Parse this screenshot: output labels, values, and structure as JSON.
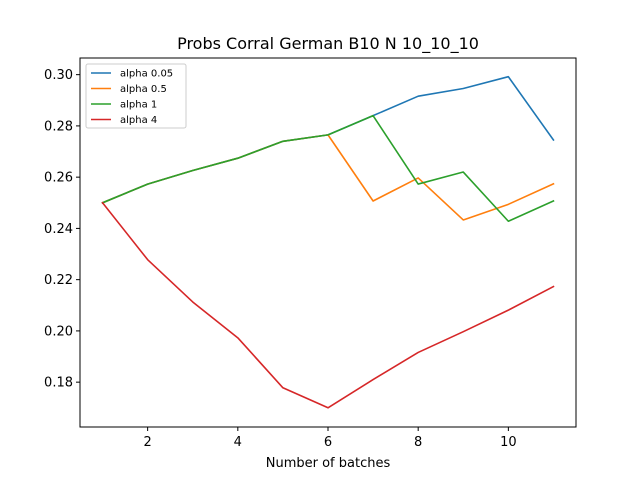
{
  "chart_data": {
    "type": "line",
    "title": "Probs Corral German B10 N 10_10_10",
    "xlabel": "Number of batches",
    "ylabel": "",
    "x": [
      1,
      2,
      3,
      4,
      5,
      6,
      7,
      8,
      9,
      10,
      11
    ],
    "xlim": [
      0.5,
      11.5
    ],
    "ylim": [
      0.1625,
      0.3065
    ],
    "xticks": [
      2,
      4,
      6,
      8,
      10
    ],
    "yticks": [
      0.18,
      0.2,
      0.22,
      0.24,
      0.26,
      0.28,
      0.3
    ],
    "xtick_labels": [
      "2",
      "4",
      "6",
      "8",
      "10"
    ],
    "ytick_labels": [
      "0.18",
      "0.20",
      "0.22",
      "0.24",
      "0.26",
      "0.28",
      "0.30"
    ],
    "grid": false,
    "legend_position": "upper-left",
    "series": [
      {
        "name": "alpha 0.05",
        "color": "#1f77b4",
        "values": [
          0.25,
          0.2573,
          0.2626,
          0.2674,
          0.274,
          0.2765,
          0.284,
          0.2916,
          0.2946,
          0.2992,
          0.2745
        ]
      },
      {
        "name": "alpha 0.5",
        "color": "#ff7f0e",
        "values": [
          0.25,
          0.2573,
          0.2626,
          0.2674,
          0.274,
          0.2765,
          0.2507,
          0.2597,
          0.2433,
          0.2494,
          0.2574
        ]
      },
      {
        "name": "alpha 1",
        "color": "#2ca02c",
        "values": [
          0.25,
          0.2573,
          0.2626,
          0.2674,
          0.274,
          0.2765,
          0.284,
          0.2573,
          0.262,
          0.2428,
          0.2507
        ]
      },
      {
        "name": "alpha 4",
        "color": "#d62728",
        "values": [
          0.25,
          0.2278,
          0.2113,
          0.1973,
          0.1778,
          0.17,
          0.181,
          0.1916,
          0.1997,
          0.2081,
          0.2173
        ]
      }
    ]
  }
}
